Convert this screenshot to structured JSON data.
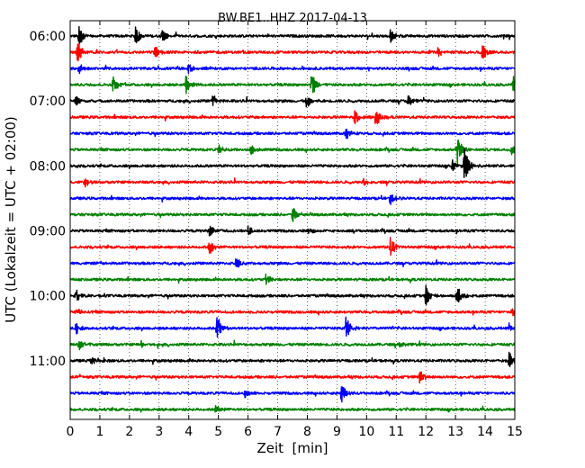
{
  "chart_data": {
    "type": "line",
    "title": "BW.BE1..HHZ 2017-04-13",
    "xlabel": "Zeit  [min]",
    "ylabel": "UTC (Lokalzeit = UTC + 02:00)",
    "xlim": [
      0,
      15
    ],
    "x_ticks": [
      0,
      1,
      2,
      3,
      4,
      5,
      6,
      7,
      8,
      9,
      10,
      11,
      12,
      13,
      14,
      15
    ],
    "y_tick_labels": [
      "06:00",
      "07:00",
      "08:00",
      "09:00",
      "10:00",
      "11:00"
    ],
    "grid": "vertical dotted",
    "trace_interval_min": 15,
    "first_trace": "06:00",
    "color_cycle": [
      "#000000",
      "#ff0000",
      "#0000ff",
      "#008000"
    ],
    "traces": [
      {
        "start": "06:00",
        "events": [
          {
            "t": 0.3,
            "a": 1.0
          },
          {
            "t": 2.2,
            "a": 1.0
          },
          {
            "t": 3.1,
            "a": 0.6
          },
          {
            "t": 10.8,
            "a": 0.7
          }
        ]
      },
      {
        "start": "06:15",
        "events": [
          {
            "t": 0.25,
            "a": 1.4
          },
          {
            "t": 2.85,
            "a": 0.8
          },
          {
            "t": 12.4,
            "a": 0.5
          },
          {
            "t": 13.9,
            "a": 0.8
          }
        ]
      },
      {
        "start": "06:30",
        "events": [
          {
            "t": 0.3,
            "a": 0.5
          },
          {
            "t": 4.0,
            "a": 0.6
          }
        ]
      },
      {
        "start": "06:45",
        "events": [
          {
            "t": 1.45,
            "a": 0.9
          },
          {
            "t": 3.9,
            "a": 0.9
          },
          {
            "t": 8.15,
            "a": 1.2
          },
          {
            "t": 14.95,
            "a": 0.8
          }
        ]
      },
      {
        "start": "07:00",
        "events": [
          {
            "t": 0.2,
            "a": 0.5
          },
          {
            "t": 4.8,
            "a": 0.7
          },
          {
            "t": 7.95,
            "a": 1.0
          },
          {
            "t": 11.4,
            "a": 0.5
          }
        ]
      },
      {
        "start": "07:15",
        "events": [
          {
            "t": 9.6,
            "a": 0.8
          },
          {
            "t": 10.3,
            "a": 1.4
          }
        ]
      },
      {
        "start": "07:30",
        "events": [
          {
            "t": 9.3,
            "a": 0.7
          }
        ]
      },
      {
        "start": "07:45",
        "events": [
          {
            "t": 5.0,
            "a": 0.5
          },
          {
            "t": 6.1,
            "a": 0.5
          },
          {
            "t": 13.05,
            "a": 1.6
          },
          {
            "t": 14.9,
            "a": 0.5
          }
        ]
      },
      {
        "start": "08:00",
        "events": [
          {
            "t": 12.9,
            "a": 0.7
          },
          {
            "t": 13.3,
            "a": 1.8
          }
        ]
      },
      {
        "start": "08:15",
        "events": [
          {
            "t": 0.5,
            "a": 0.4
          },
          {
            "t": 9.9,
            "a": 0.4
          }
        ]
      },
      {
        "start": "08:30",
        "events": [
          {
            "t": 10.8,
            "a": 0.6
          }
        ]
      },
      {
        "start": "08:45",
        "events": [
          {
            "t": 7.5,
            "a": 1.0
          }
        ]
      },
      {
        "start": "09:00",
        "events": [
          {
            "t": 4.7,
            "a": 0.6
          },
          {
            "t": 6.0,
            "a": 0.5
          },
          {
            "t": 8.05,
            "a": 0.5
          }
        ]
      },
      {
        "start": "09:15",
        "events": [
          {
            "t": 4.7,
            "a": 0.8
          },
          {
            "t": 10.8,
            "a": 1.0
          }
        ]
      },
      {
        "start": "09:30",
        "events": [
          {
            "t": 5.6,
            "a": 0.6
          }
        ]
      },
      {
        "start": "09:45",
        "events": [
          {
            "t": 6.6,
            "a": 0.7
          }
        ]
      },
      {
        "start": "10:00",
        "events": [
          {
            "t": 0.2,
            "a": 0.6
          },
          {
            "t": 12.0,
            "a": 1.1
          },
          {
            "t": 13.05,
            "a": 1.1
          }
        ]
      },
      {
        "start": "10:15",
        "events": [
          {
            "t": 0.2,
            "a": 0.4
          },
          {
            "t": 14.9,
            "a": 0.4
          }
        ]
      },
      {
        "start": "10:30",
        "events": [
          {
            "t": 0.2,
            "a": 0.6
          },
          {
            "t": 4.95,
            "a": 1.2
          },
          {
            "t": 9.3,
            "a": 1.3
          },
          {
            "t": 14.8,
            "a": 0.5
          }
        ]
      },
      {
        "start": "10:45",
        "events": [
          {
            "t": 0.3,
            "a": 0.5
          },
          {
            "t": 2.4,
            "a": 0.3
          },
          {
            "t": 11.1,
            "a": 0.3
          }
        ]
      },
      {
        "start": "11:00",
        "events": [
          {
            "t": 0.7,
            "a": 0.5
          },
          {
            "t": 14.8,
            "a": 1.0
          }
        ]
      },
      {
        "start": "11:15",
        "events": [
          {
            "t": 11.8,
            "a": 0.8
          }
        ]
      },
      {
        "start": "11:30",
        "events": [
          {
            "t": 5.9,
            "a": 0.5
          },
          {
            "t": 9.15,
            "a": 1.0
          }
        ]
      },
      {
        "start": "11:45",
        "events": [
          {
            "t": 4.9,
            "a": 0.5
          }
        ]
      }
    ]
  }
}
